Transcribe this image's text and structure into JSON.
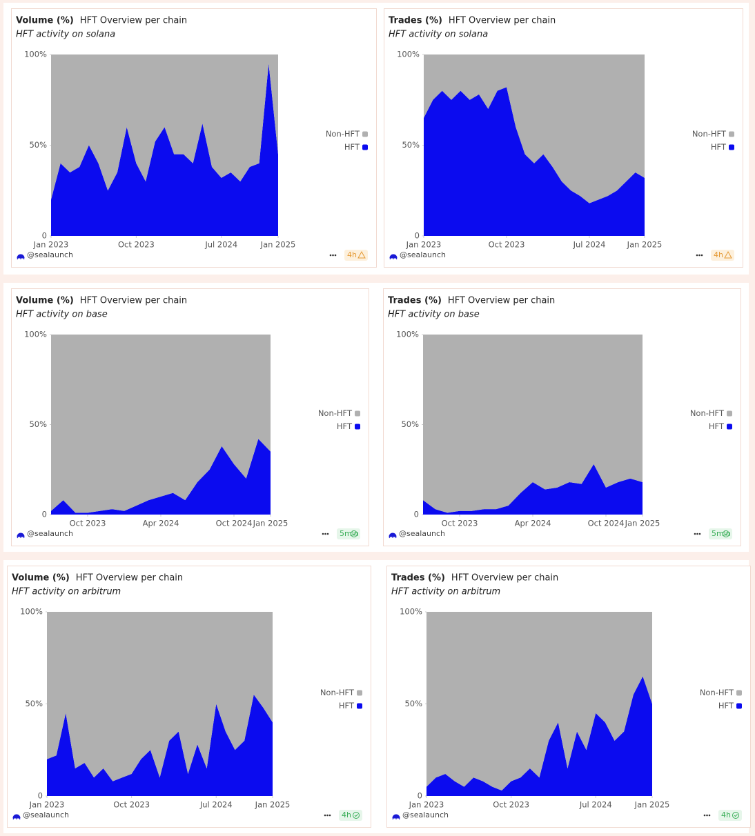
{
  "chart_data": [
    {
      "type": "area",
      "metric": "Volume (%)",
      "title": "HFT Overview per chain",
      "subtitle": "HFT activity on solana",
      "author": "@sealaunch",
      "refresh": "4h",
      "status": "warning",
      "stacked": true,
      "x": [
        "2023-01",
        "2023-02",
        "2023-03",
        "2023-04",
        "2023-05",
        "2023-06",
        "2023-07",
        "2023-08",
        "2023-09",
        "2023-10",
        "2023-11",
        "2023-12",
        "2024-01",
        "2024-02",
        "2024-03",
        "2024-04",
        "2024-05",
        "2024-06",
        "2024-07",
        "2024-08",
        "2024-09",
        "2024-10",
        "2024-11",
        "2024-12",
        "2025-01"
      ],
      "series": [
        {
          "name": "HFT",
          "color": "#0b0bef",
          "values": [
            20,
            40,
            35,
            38,
            50,
            40,
            25,
            35,
            60,
            40,
            30,
            52,
            60,
            45,
            45,
            40,
            62,
            38,
            32,
            35,
            30,
            38,
            40,
            95,
            45
          ]
        },
        {
          "name": "Non-HFT",
          "color": "#b0b0b0",
          "values": [
            80,
            60,
            65,
            62,
            50,
            60,
            75,
            65,
            40,
            60,
            70,
            48,
            40,
            55,
            55,
            60,
            38,
            62,
            68,
            65,
            70,
            62,
            60,
            5,
            55
          ]
        }
      ],
      "xlim": [
        "2023-01",
        "2025-01"
      ],
      "xticks": [
        {
          "value": "2023-01",
          "label": "Jan 2023"
        },
        {
          "value": "2023-10",
          "label": "Oct 2023"
        },
        {
          "value": "2024-07",
          "label": "Jul 2024"
        },
        {
          "value": "2025-01",
          "label": "Jan 2025"
        }
      ],
      "ylim": [
        0,
        100
      ],
      "yticks": [
        0,
        {
          "value": 50,
          "label": "50%"
        },
        {
          "value": 100,
          "label": "100%"
        }
      ]
    },
    {
      "type": "area",
      "metric": "Trades (%)",
      "title": "HFT Overview per chain",
      "subtitle": "HFT activity on solana",
      "author": "@sealaunch",
      "refresh": "4h",
      "status": "warning",
      "stacked": true,
      "x": [
        "2023-01",
        "2023-02",
        "2023-03",
        "2023-04",
        "2023-05",
        "2023-06",
        "2023-07",
        "2023-08",
        "2023-09",
        "2023-10",
        "2023-11",
        "2023-12",
        "2024-01",
        "2024-02",
        "2024-03",
        "2024-04",
        "2024-05",
        "2024-06",
        "2024-07",
        "2024-08",
        "2024-09",
        "2024-10",
        "2024-11",
        "2024-12",
        "2025-01"
      ],
      "series": [
        {
          "name": "HFT",
          "color": "#0b0bef",
          "values": [
            65,
            75,
            80,
            75,
            80,
            75,
            78,
            70,
            80,
            82,
            60,
            45,
            40,
            45,
            38,
            30,
            25,
            22,
            18,
            20,
            22,
            25,
            30,
            35,
            32
          ]
        },
        {
          "name": "Non-HFT",
          "color": "#b0b0b0",
          "values": [
            35,
            25,
            20,
            25,
            20,
            25,
            22,
            30,
            20,
            18,
            40,
            55,
            60,
            55,
            62,
            70,
            75,
            78,
            82,
            80,
            78,
            75,
            70,
            65,
            68
          ]
        }
      ],
      "xlim": [
        "2023-01",
        "2025-01"
      ],
      "xticks": [
        {
          "value": "2023-01",
          "label": "Jan 2023"
        },
        {
          "value": "2023-10",
          "label": "Oct 2023"
        },
        {
          "value": "2024-07",
          "label": "Jul 2024"
        },
        {
          "value": "2025-01",
          "label": "Jan 2025"
        }
      ],
      "ylim": [
        0,
        100
      ],
      "yticks": [
        0,
        {
          "value": 50,
          "label": "50%"
        },
        {
          "value": 100,
          "label": "100%"
        }
      ]
    },
    {
      "type": "area",
      "metric": "Volume (%)",
      "title": "HFT Overview per chain",
      "subtitle": "HFT activity on base",
      "author": "@sealaunch",
      "refresh": "5min",
      "status": "ok",
      "stacked": true,
      "x": [
        "2023-07",
        "2023-08",
        "2023-09",
        "2023-10",
        "2023-11",
        "2023-12",
        "2024-01",
        "2024-02",
        "2024-03",
        "2024-04",
        "2024-05",
        "2024-06",
        "2024-07",
        "2024-08",
        "2024-09",
        "2024-10",
        "2024-11",
        "2024-12",
        "2025-01"
      ],
      "series": [
        {
          "name": "HFT",
          "color": "#0b0bef",
          "values": [
            2,
            8,
            1,
            1,
            2,
            3,
            2,
            5,
            8,
            10,
            12,
            8,
            18,
            25,
            38,
            28,
            20,
            42,
            35
          ]
        },
        {
          "name": "Non-HFT",
          "color": "#b0b0b0",
          "values": [
            98,
            92,
            99,
            99,
            98,
            97,
            98,
            95,
            92,
            90,
            88,
            92,
            82,
            75,
            62,
            72,
            80,
            58,
            65
          ]
        }
      ],
      "xlim": [
        "2023-07",
        "2025-01"
      ],
      "xticks": [
        {
          "value": "2023-10",
          "label": "Oct 2023"
        },
        {
          "value": "2024-04",
          "label": "Apr 2024"
        },
        {
          "value": "2024-10",
          "label": "Oct 2024"
        },
        {
          "value": "2025-01",
          "label": "Jan 2025"
        }
      ],
      "ylim": [
        0,
        100
      ],
      "yticks": [
        0,
        {
          "value": 50,
          "label": "50%"
        },
        {
          "value": 100,
          "label": "100%"
        }
      ]
    },
    {
      "type": "area",
      "metric": "Trades (%)",
      "title": "HFT Overview per chain",
      "subtitle": "HFT activity on base",
      "author": "@sealaunch",
      "refresh": "5min",
      "status": "ok",
      "stacked": true,
      "x": [
        "2023-07",
        "2023-08",
        "2023-09",
        "2023-10",
        "2023-11",
        "2023-12",
        "2024-01",
        "2024-02",
        "2024-03",
        "2024-04",
        "2024-05",
        "2024-06",
        "2024-07",
        "2024-08",
        "2024-09",
        "2024-10",
        "2024-11",
        "2024-12",
        "2025-01"
      ],
      "series": [
        {
          "name": "HFT",
          "color": "#0b0bef",
          "values": [
            8,
            3,
            1,
            2,
            2,
            3,
            3,
            5,
            12,
            18,
            14,
            15,
            18,
            17,
            28,
            15,
            18,
            20,
            18
          ]
        },
        {
          "name": "Non-HFT",
          "color": "#b0b0b0",
          "values": [
            92,
            97,
            99,
            98,
            98,
            97,
            97,
            95,
            88,
            82,
            86,
            85,
            82,
            83,
            72,
            85,
            82,
            80,
            82
          ]
        }
      ],
      "xlim": [
        "2023-07",
        "2025-01"
      ],
      "xticks": [
        {
          "value": "2023-10",
          "label": "Oct 2023"
        },
        {
          "value": "2024-04",
          "label": "Apr 2024"
        },
        {
          "value": "2024-10",
          "label": "Oct 2024"
        },
        {
          "value": "2025-01",
          "label": "Jan 2025"
        }
      ],
      "ylim": [
        0,
        100
      ],
      "yticks": [
        0,
        {
          "value": 50,
          "label": "50%"
        },
        {
          "value": 100,
          "label": "100%"
        }
      ]
    },
    {
      "type": "area",
      "metric": "Volume (%)",
      "title": "HFT Overview per chain",
      "subtitle": "HFT activity on arbitrum",
      "author": "@sealaunch",
      "refresh": "4h",
      "status": "ok",
      "stacked": true,
      "x": [
        "2023-01",
        "2023-02",
        "2023-03",
        "2023-04",
        "2023-05",
        "2023-06",
        "2023-07",
        "2023-08",
        "2023-09",
        "2023-10",
        "2023-11",
        "2023-12",
        "2024-01",
        "2024-02",
        "2024-03",
        "2024-04",
        "2024-05",
        "2024-06",
        "2024-07",
        "2024-08",
        "2024-09",
        "2024-10",
        "2024-11",
        "2024-12",
        "2025-01"
      ],
      "series": [
        {
          "name": "HFT",
          "color": "#0b0bef",
          "values": [
            20,
            22,
            45,
            15,
            18,
            10,
            15,
            8,
            10,
            12,
            20,
            25,
            10,
            30,
            35,
            12,
            28,
            15,
            50,
            35,
            25,
            30,
            55,
            48,
            40
          ]
        },
        {
          "name": "Non-HFT",
          "color": "#b0b0b0",
          "values": [
            80,
            78,
            55,
            85,
            82,
            90,
            85,
            92,
            90,
            88,
            80,
            75,
            90,
            70,
            65,
            88,
            72,
            85,
            50,
            65,
            75,
            70,
            45,
            52,
            60
          ]
        }
      ],
      "xlim": [
        "2023-01",
        "2025-01"
      ],
      "xticks": [
        {
          "value": "2023-01",
          "label": "Jan 2023"
        },
        {
          "value": "2023-10",
          "label": "Oct 2023"
        },
        {
          "value": "2024-07",
          "label": "Jul 2024"
        },
        {
          "value": "2025-01",
          "label": "Jan 2025"
        }
      ],
      "ylim": [
        0,
        100
      ],
      "yticks": [
        0,
        {
          "value": 50,
          "label": "50%"
        },
        {
          "value": 100,
          "label": "100%"
        }
      ]
    },
    {
      "type": "area",
      "metric": "Trades (%)",
      "title": "HFT Overview per chain",
      "subtitle": "HFT activity on arbitrum",
      "author": "@sealaunch",
      "refresh": "4h",
      "status": "ok",
      "stacked": true,
      "x": [
        "2023-01",
        "2023-02",
        "2023-03",
        "2023-04",
        "2023-05",
        "2023-06",
        "2023-07",
        "2023-08",
        "2023-09",
        "2023-10",
        "2023-11",
        "2023-12",
        "2024-01",
        "2024-02",
        "2024-03",
        "2024-04",
        "2024-05",
        "2024-06",
        "2024-07",
        "2024-08",
        "2024-09",
        "2024-10",
        "2024-11",
        "2024-12",
        "2025-01"
      ],
      "series": [
        {
          "name": "HFT",
          "color": "#0b0bef",
          "values": [
            5,
            10,
            12,
            8,
            5,
            10,
            8,
            5,
            3,
            8,
            10,
            15,
            10,
            30,
            40,
            15,
            35,
            25,
            45,
            40,
            30,
            35,
            55,
            65,
            50
          ]
        },
        {
          "name": "Non-HFT",
          "color": "#b0b0b0",
          "values": [
            95,
            90,
            88,
            92,
            95,
            90,
            92,
            95,
            97,
            92,
            90,
            85,
            90,
            70,
            60,
            85,
            65,
            75,
            55,
            60,
            70,
            65,
            45,
            35,
            50
          ]
        }
      ],
      "xlim": [
        "2023-01",
        "2025-01"
      ],
      "xticks": [
        {
          "value": "2023-01",
          "label": "Jan 2023"
        },
        {
          "value": "2023-10",
          "label": "Oct 2023"
        },
        {
          "value": "2024-07",
          "label": "Jul 2024"
        },
        {
          "value": "2025-01",
          "label": "Jan 2025"
        }
      ],
      "ylim": [
        0,
        100
      ],
      "yticks": [
        0,
        {
          "value": 50,
          "label": "50%"
        },
        {
          "value": 100,
          "label": "100%"
        }
      ]
    }
  ]
}
